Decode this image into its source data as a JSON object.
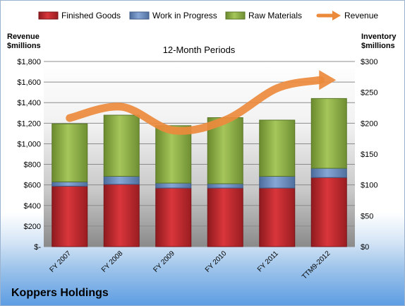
{
  "chart_data": {
    "type": "bar",
    "stacked": true,
    "title": "12-Month Periods",
    "categories": [
      "FY 2007",
      "FY 2008",
      "FY 2009",
      "FY 2010",
      "FY 2011",
      "TTM9-2012"
    ],
    "series": [
      {
        "name": "Finished Goods",
        "color": "#c0272d",
        "values": [
          98,
          101,
          95,
          95,
          95,
          112
        ]
      },
      {
        "name": "Work in Progress",
        "color": "#6a8fc4",
        "values": [
          7,
          13,
          8,
          7,
          19,
          15
        ]
      },
      {
        "name": "Raw Materials",
        "color": "#8fb246",
        "values": [
          94,
          99,
          93,
          107,
          91,
          113
        ]
      }
    ],
    "line_series": {
      "name": "Revenue",
      "color": "#ec8a3c",
      "values": [
        1250,
        1360,
        1130,
        1230,
        1540,
        1620
      ]
    },
    "y_left": {
      "label": "Revenue\n$millions",
      "ylim": [
        0,
        1800
      ],
      "ticks": [
        "$-",
        "$200",
        "$400",
        "$600",
        "$800",
        "$1,000",
        "$1,200",
        "$1,400",
        "$1,600",
        "$1,800"
      ]
    },
    "y_right": {
      "label": "Inventory\n$millions",
      "ylim": [
        0,
        300
      ],
      "ticks": [
        "$0",
        "$50",
        "$100",
        "$150",
        "$200",
        "$250",
        "$300"
      ]
    },
    "legend_position": "top",
    "grid": true
  },
  "header": {
    "y_left_title_1": "Revenue",
    "y_left_title_2": "$millions",
    "y_right_title_1": "Inventory",
    "y_right_title_2": "$millions"
  },
  "footer": {
    "company": "Koppers Holdings"
  }
}
